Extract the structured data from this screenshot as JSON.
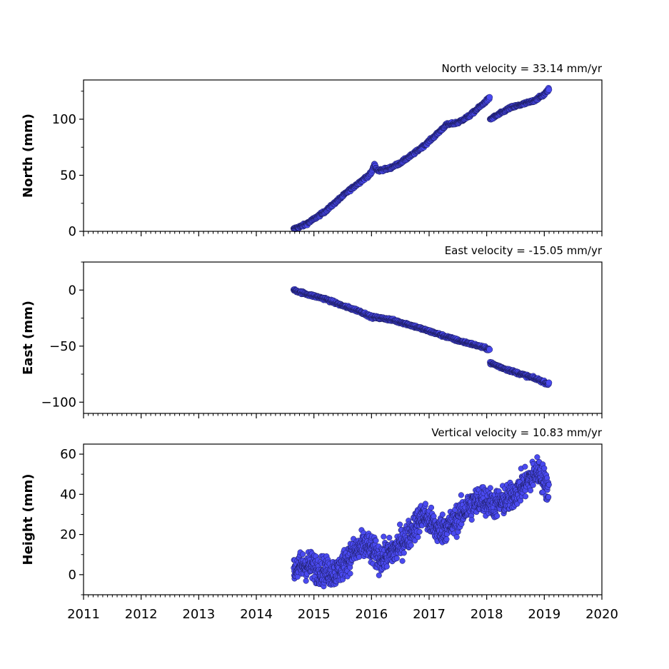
{
  "chart_data": [
    {
      "type": "scatter",
      "title": "North velocity = 33.14 mm/yr",
      "xlabel": "",
      "ylabel": "North (mm)",
      "xlim": [
        2011,
        2020
      ],
      "ylim": [
        0,
        135
      ],
      "yticks": [
        0,
        50,
        100
      ],
      "yticklabels": [
        "0",
        "50",
        "100"
      ],
      "marker_color": "#4a4af0",
      "marker_edge": "#1a1a5a",
      "segments": [
        {
          "x": [
            2014.65,
            2014.85,
            2015.0,
            2015.2,
            2015.4,
            2015.6,
            2015.8,
            2016.0,
            2016.05,
            2016.1,
            2016.3,
            2016.5,
            2016.7,
            2016.9,
            2017.1,
            2017.3,
            2017.5,
            2017.7,
            2017.9,
            2018.05
          ],
          "y": [
            2,
            6,
            11,
            18,
            27,
            36,
            44,
            52,
            60,
            54,
            56,
            61,
            68,
            76,
            85,
            95,
            97,
            103,
            112,
            119
          ]
        },
        {
          "x": [
            2018.06,
            2018.2,
            2018.4,
            2018.6,
            2018.8,
            2019.0,
            2019.08
          ],
          "y": [
            100,
            104,
            110,
            113,
            116,
            122,
            127
          ]
        }
      ]
    },
    {
      "type": "scatter",
      "title": "East velocity = -15.05 mm/yr",
      "xlabel": "",
      "ylabel": "East (mm)",
      "xlim": [
        2011,
        2020
      ],
      "ylim": [
        -110,
        25
      ],
      "yticks": [
        -100,
        -50,
        0
      ],
      "yticklabels": [
        "−100",
        "−50",
        "0"
      ],
      "marker_color": "#4a4af0",
      "marker_edge": "#1a1a5a",
      "segments": [
        {
          "x": [
            2014.65,
            2014.9,
            2015.2,
            2015.5,
            2015.8,
            2016.0,
            2016.3,
            2016.6,
            2016.9,
            2017.2,
            2017.5,
            2017.8,
            2018.05
          ],
          "y": [
            0,
            -4,
            -8,
            -14,
            -19,
            -24,
            -26,
            -30,
            -35,
            -40,
            -45,
            -49,
            -53
          ]
        },
        {
          "x": [
            2018.06,
            2018.3,
            2018.6,
            2018.9,
            2019.08
          ],
          "y": [
            -65,
            -70,
            -75,
            -80,
            -84
          ]
        }
      ]
    },
    {
      "type": "scatter",
      "title": "Vertical velocity = 10.83 mm/yr",
      "xlabel": "",
      "ylabel": "Height (mm)",
      "xlim": [
        2011,
        2020
      ],
      "ylim": [
        -10,
        65
      ],
      "yticks": [
        0,
        20,
        40,
        60
      ],
      "yticklabels": [
        "0",
        "20",
        "40",
        "60"
      ],
      "xticks": [
        2011,
        2012,
        2013,
        2014,
        2015,
        2016,
        2017,
        2018,
        2019,
        2020
      ],
      "xticklabels": [
        "2011",
        "2012",
        "2013",
        "2014",
        "2015",
        "2016",
        "2017",
        "2018",
        "2019",
        "2020"
      ],
      "marker_color": "#4a4af0",
      "marker_edge": "#1a1a5a",
      "trend": {
        "x": [
          2014.65,
          2014.9,
          2015.15,
          2015.4,
          2015.65,
          2015.9,
          2016.15,
          2016.4,
          2016.65,
          2016.9,
          2017.15,
          2017.4,
          2017.65,
          2017.9,
          2018.15,
          2018.4,
          2018.65,
          2018.9,
          2019.08
        ],
        "y": [
          3,
          5,
          2,
          1,
          10,
          15,
          8,
          12,
          20,
          30,
          22,
          25,
          33,
          38,
          35,
          38,
          45,
          52,
          42
        ]
      },
      "spread": 5
    }
  ]
}
